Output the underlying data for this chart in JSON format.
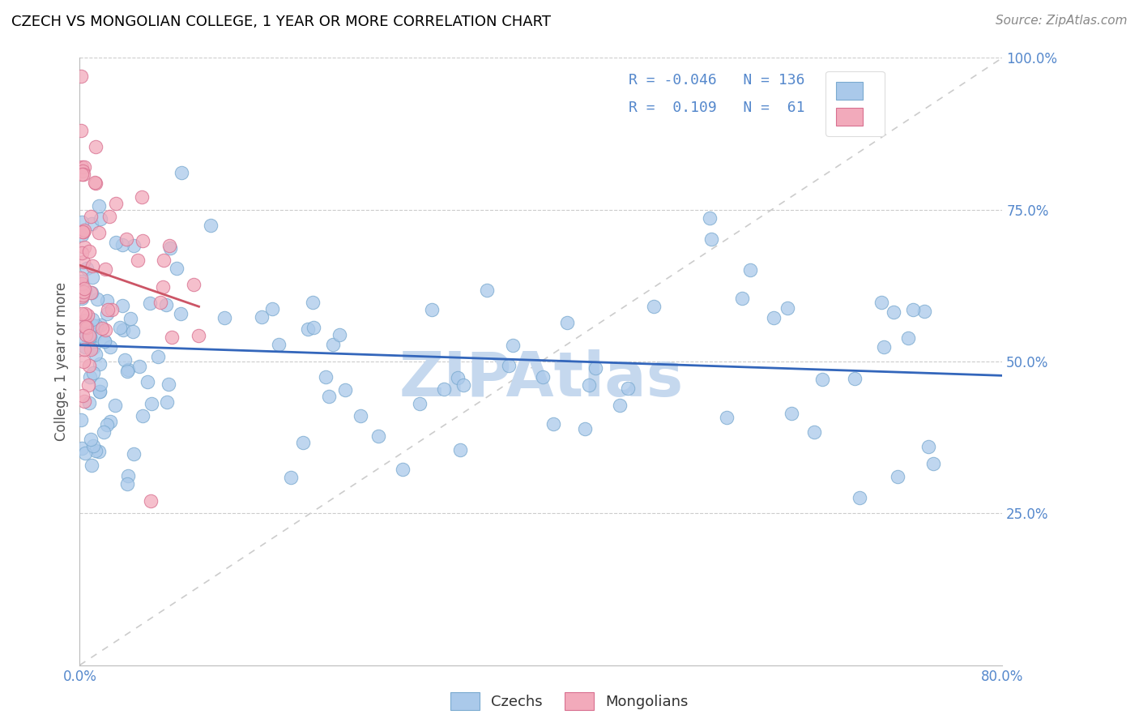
{
  "title": "CZECH VS MONGOLIAN COLLEGE, 1 YEAR OR MORE CORRELATION CHART",
  "source_text": "Source: ZipAtlas.com",
  "ylabel": "College, 1 year or more",
  "xlim": [
    0.0,
    0.8
  ],
  "ylim": [
    0.0,
    1.0
  ],
  "blue_color": "#aac9ea",
  "pink_color": "#f2aabb",
  "blue_edge": "#7aaad0",
  "pink_edge": "#d87090",
  "trend_blue_color": "#3366bb",
  "trend_pink_color": "#cc5566",
  "diagonal_color": "#cccccc",
  "watermark_color": "#c5d8ee",
  "legend_R_blue": "-0.046",
  "legend_N_blue": "136",
  "legend_R_pink": "0.109",
  "legend_N_pink": "61",
  "R_blue": -0.046,
  "N_blue": 136,
  "R_pink": 0.109,
  "N_pink": 61,
  "figsize": [
    14.06,
    8.92
  ],
  "dpi": 100,
  "grid_color": "#cccccc",
  "tick_color": "#5588cc",
  "title_fontsize": 13,
  "source_fontsize": 11,
  "label_fontsize": 12,
  "tick_fontsize": 12
}
